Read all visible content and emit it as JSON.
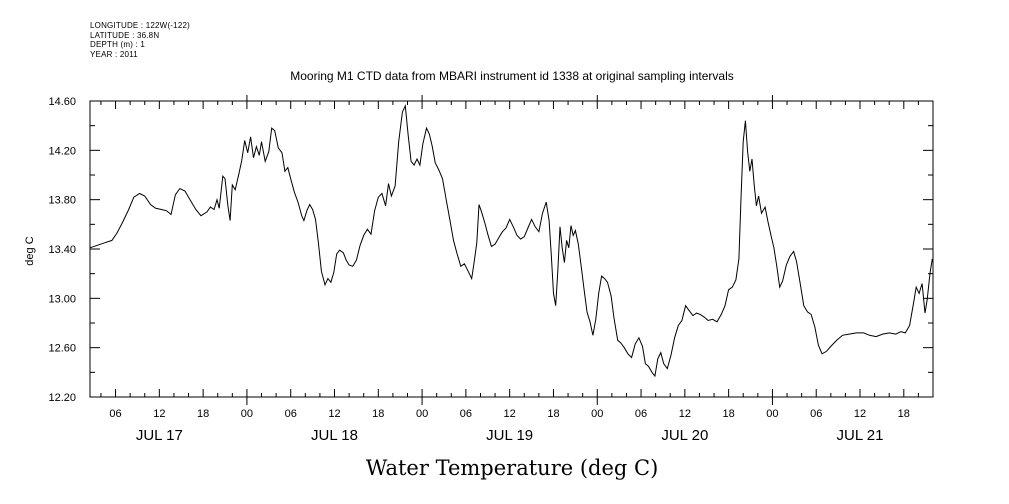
{
  "header_lines": [
    "LONGITUDE : 122W(-122)",
    "LATITUDE : 36.8N",
    "DEPTH (m) : 1",
    "YEAR : 2011"
  ],
  "chart_data": {
    "type": "line",
    "title": "Mooring M1 CTD data from MBARI instrument id 1338 at original sampling intervals",
    "ylabel": "deg C",
    "caption": "Water Temperature (deg C)",
    "ylim": [
      12.2,
      14.6
    ],
    "xlim_hours": [
      2.5,
      118.0
    ],
    "yticks": [
      12.2,
      12.6,
      13.0,
      13.4,
      13.8,
      14.2,
      14.6
    ],
    "ytick_labels": [
      "12.20",
      "12.60",
      "13.00",
      "13.40",
      "13.80",
      "14.20",
      "14.60"
    ],
    "xtick_labels": [
      {
        "hour": 6,
        "label": "06"
      },
      {
        "hour": 12,
        "label": "12"
      },
      {
        "hour": 18,
        "label": "18"
      },
      {
        "hour": 24,
        "label": "00"
      },
      {
        "hour": 30,
        "label": "06"
      },
      {
        "hour": 36,
        "label": "12"
      },
      {
        "hour": 42,
        "label": "18"
      },
      {
        "hour": 48,
        "label": "00"
      },
      {
        "hour": 54,
        "label": "06"
      },
      {
        "hour": 60,
        "label": "12"
      },
      {
        "hour": 66,
        "label": "18"
      },
      {
        "hour": 72,
        "label": "00"
      },
      {
        "hour": 78,
        "label": "06"
      },
      {
        "hour": 84,
        "label": "12"
      },
      {
        "hour": 90,
        "label": "18"
      },
      {
        "hour": 96,
        "label": "00"
      },
      {
        "hour": 102,
        "label": "06"
      },
      {
        "hour": 108,
        "label": "12"
      },
      {
        "hour": 114,
        "label": "18"
      }
    ],
    "day_labels": [
      {
        "hour": 12,
        "label": "JUL 17"
      },
      {
        "hour": 36,
        "label": "JUL 18"
      },
      {
        "hour": 60,
        "label": "JUL 19"
      },
      {
        "hour": 84,
        "label": "JUL 20"
      },
      {
        "hour": 108,
        "label": "JUL 21"
      }
    ],
    "series": [
      {
        "x_unit": "hours since JUL 17 00:00",
        "points": [
          [
            2.5,
            13.41
          ],
          [
            3.5,
            13.43
          ],
          [
            4.5,
            13.45
          ],
          [
            5.5,
            13.47
          ],
          [
            6.2,
            13.53
          ],
          [
            7.0,
            13.62
          ],
          [
            7.8,
            13.72
          ],
          [
            8.5,
            13.82
          ],
          [
            9.3,
            13.85
          ],
          [
            10.0,
            13.83
          ],
          [
            10.8,
            13.76
          ],
          [
            11.5,
            13.73
          ],
          [
            12.3,
            13.72
          ],
          [
            13.0,
            13.71
          ],
          [
            13.6,
            13.68
          ],
          [
            14.2,
            13.84
          ],
          [
            14.8,
            13.89
          ],
          [
            15.5,
            13.87
          ],
          [
            16.3,
            13.79
          ],
          [
            17.0,
            13.72
          ],
          [
            17.7,
            13.67
          ],
          [
            18.5,
            13.7
          ],
          [
            19.0,
            13.74
          ],
          [
            19.5,
            13.72
          ],
          [
            19.9,
            13.8
          ],
          [
            20.2,
            13.73
          ],
          [
            20.7,
            13.99
          ],
          [
            21.0,
            13.97
          ],
          [
            21.4,
            13.75
          ],
          [
            21.7,
            13.63
          ],
          [
            22.0,
            13.92
          ],
          [
            22.4,
            13.88
          ],
          [
            22.9,
            14.01
          ],
          [
            23.3,
            14.12
          ],
          [
            23.7,
            14.28
          ],
          [
            24.1,
            14.18
          ],
          [
            24.5,
            14.31
          ],
          [
            24.9,
            14.14
          ],
          [
            25.3,
            14.23
          ],
          [
            25.7,
            14.16
          ],
          [
            26.0,
            14.27
          ],
          [
            26.5,
            14.11
          ],
          [
            27.0,
            14.19
          ],
          [
            27.4,
            14.38
          ],
          [
            27.8,
            14.36
          ],
          [
            28.3,
            14.22
          ],
          [
            28.8,
            14.18
          ],
          [
            29.2,
            14.03
          ],
          [
            29.6,
            14.06
          ],
          [
            30.0,
            13.97
          ],
          [
            30.5,
            13.86
          ],
          [
            31.0,
            13.78
          ],
          [
            31.5,
            13.67
          ],
          [
            31.8,
            13.63
          ],
          [
            32.2,
            13.71
          ],
          [
            32.6,
            13.76
          ],
          [
            33.0,
            13.72
          ],
          [
            33.4,
            13.64
          ],
          [
            33.8,
            13.45
          ],
          [
            34.2,
            13.22
          ],
          [
            34.7,
            13.11
          ],
          [
            35.1,
            13.16
          ],
          [
            35.5,
            13.13
          ],
          [
            35.9,
            13.21
          ],
          [
            36.3,
            13.36
          ],
          [
            36.7,
            13.39
          ],
          [
            37.2,
            13.37
          ],
          [
            37.6,
            13.31
          ],
          [
            38.0,
            13.27
          ],
          [
            38.5,
            13.26
          ],
          [
            39.0,
            13.31
          ],
          [
            39.5,
            13.43
          ],
          [
            40.0,
            13.51
          ],
          [
            40.5,
            13.56
          ],
          [
            41.0,
            13.52
          ],
          [
            41.5,
            13.71
          ],
          [
            42.0,
            13.82
          ],
          [
            42.5,
            13.85
          ],
          [
            43.0,
            13.75
          ],
          [
            43.4,
            13.93
          ],
          [
            43.8,
            13.83
          ],
          [
            44.3,
            13.91
          ],
          [
            44.8,
            14.27
          ],
          [
            45.3,
            14.51
          ],
          [
            45.7,
            14.56
          ],
          [
            46.1,
            14.32
          ],
          [
            46.5,
            14.11
          ],
          [
            46.9,
            14.08
          ],
          [
            47.3,
            14.13
          ],
          [
            47.7,
            14.08
          ],
          [
            48.1,
            14.25
          ],
          [
            48.6,
            14.38
          ],
          [
            49.0,
            14.33
          ],
          [
            49.4,
            14.23
          ],
          [
            49.8,
            14.1
          ],
          [
            50.3,
            14.04
          ],
          [
            50.8,
            13.97
          ],
          [
            51.3,
            13.8
          ],
          [
            51.8,
            13.64
          ],
          [
            52.3,
            13.47
          ],
          [
            52.8,
            13.36
          ],
          [
            53.3,
            13.26
          ],
          [
            53.8,
            13.28
          ],
          [
            54.3,
            13.22
          ],
          [
            54.8,
            13.16
          ],
          [
            55.2,
            13.32
          ],
          [
            55.5,
            13.45
          ],
          [
            55.8,
            13.76
          ],
          [
            56.1,
            13.71
          ],
          [
            56.6,
            13.61
          ],
          [
            57.0,
            13.52
          ],
          [
            57.5,
            13.42
          ],
          [
            58.0,
            13.44
          ],
          [
            58.5,
            13.49
          ],
          [
            59.0,
            13.54
          ],
          [
            59.5,
            13.57
          ],
          [
            60.0,
            13.64
          ],
          [
            60.5,
            13.58
          ],
          [
            61.0,
            13.51
          ],
          [
            61.5,
            13.48
          ],
          [
            62.0,
            13.5
          ],
          [
            62.5,
            13.57
          ],
          [
            63.0,
            13.64
          ],
          [
            63.5,
            13.58
          ],
          [
            64.0,
            13.54
          ],
          [
            64.5,
            13.69
          ],
          [
            65.0,
            13.78
          ],
          [
            65.4,
            13.63
          ],
          [
            65.7,
            13.35
          ],
          [
            66.0,
            13.04
          ],
          [
            66.3,
            12.94
          ],
          [
            66.6,
            13.22
          ],
          [
            66.9,
            13.58
          ],
          [
            67.2,
            13.41
          ],
          [
            67.5,
            13.29
          ],
          [
            67.8,
            13.47
          ],
          [
            68.1,
            13.41
          ],
          [
            68.4,
            13.59
          ],
          [
            68.7,
            13.51
          ],
          [
            69.0,
            13.55
          ],
          [
            69.4,
            13.44
          ],
          [
            69.8,
            13.26
          ],
          [
            70.2,
            13.07
          ],
          [
            70.6,
            12.89
          ],
          [
            71.0,
            12.81
          ],
          [
            71.4,
            12.7
          ],
          [
            71.8,
            12.83
          ],
          [
            72.2,
            13.04
          ],
          [
            72.6,
            13.18
          ],
          [
            73.0,
            13.16
          ],
          [
            73.4,
            13.13
          ],
          [
            73.9,
            13.02
          ],
          [
            74.3,
            12.84
          ],
          [
            74.8,
            12.66
          ],
          [
            75.2,
            12.64
          ],
          [
            75.7,
            12.6
          ],
          [
            76.2,
            12.55
          ],
          [
            76.7,
            12.52
          ],
          [
            77.2,
            12.63
          ],
          [
            77.7,
            12.68
          ],
          [
            78.2,
            12.61
          ],
          [
            78.6,
            12.47
          ],
          [
            79.0,
            12.45
          ],
          [
            79.5,
            12.4
          ],
          [
            79.9,
            12.37
          ],
          [
            80.3,
            12.51
          ],
          [
            80.7,
            12.56
          ],
          [
            81.1,
            12.47
          ],
          [
            81.6,
            12.43
          ],
          [
            82.1,
            12.54
          ],
          [
            82.6,
            12.68
          ],
          [
            83.1,
            12.78
          ],
          [
            83.6,
            12.82
          ],
          [
            84.1,
            12.94
          ],
          [
            84.6,
            12.9
          ],
          [
            85.1,
            12.86
          ],
          [
            85.6,
            12.88
          ],
          [
            86.1,
            12.87
          ],
          [
            86.6,
            12.85
          ],
          [
            87.2,
            12.82
          ],
          [
            87.8,
            12.83
          ],
          [
            88.4,
            12.81
          ],
          [
            89.0,
            12.87
          ],
          [
            89.5,
            12.94
          ],
          [
            90.0,
            13.07
          ],
          [
            90.5,
            13.09
          ],
          [
            91.0,
            13.15
          ],
          [
            91.4,
            13.32
          ],
          [
            91.7,
            13.81
          ],
          [
            92.0,
            14.27
          ],
          [
            92.3,
            14.44
          ],
          [
            92.6,
            14.19
          ],
          [
            92.9,
            14.03
          ],
          [
            93.2,
            14.13
          ],
          [
            93.5,
            13.92
          ],
          [
            93.8,
            13.75
          ],
          [
            94.1,
            13.83
          ],
          [
            94.5,
            13.69
          ],
          [
            95.0,
            13.74
          ],
          [
            95.4,
            13.62
          ],
          [
            95.8,
            13.51
          ],
          [
            96.2,
            13.41
          ],
          [
            96.6,
            13.26
          ],
          [
            97.0,
            13.09
          ],
          [
            97.4,
            13.14
          ],
          [
            97.9,
            13.27
          ],
          [
            98.4,
            13.34
          ],
          [
            98.9,
            13.38
          ],
          [
            99.3,
            13.3
          ],
          [
            99.8,
            13.12
          ],
          [
            100.3,
            12.94
          ],
          [
            100.8,
            12.89
          ],
          [
            101.3,
            12.87
          ],
          [
            101.8,
            12.77
          ],
          [
            102.3,
            12.62
          ],
          [
            102.8,
            12.55
          ],
          [
            103.4,
            12.57
          ],
          [
            104.0,
            12.61
          ],
          [
            104.8,
            12.66
          ],
          [
            105.6,
            12.7
          ],
          [
            106.5,
            12.71
          ],
          [
            107.5,
            12.72
          ],
          [
            108.5,
            12.72
          ],
          [
            109.3,
            12.7
          ],
          [
            110.2,
            12.69
          ],
          [
            111.1,
            12.71
          ],
          [
            112.0,
            12.72
          ],
          [
            112.9,
            12.71
          ],
          [
            113.6,
            12.73
          ],
          [
            114.2,
            12.72
          ],
          [
            114.8,
            12.78
          ],
          [
            115.3,
            12.95
          ],
          [
            115.7,
            13.09
          ],
          [
            116.1,
            13.04
          ],
          [
            116.5,
            13.12
          ],
          [
            116.9,
            12.88
          ],
          [
            117.2,
            12.99
          ],
          [
            117.6,
            13.21
          ],
          [
            117.9,
            13.32
          ]
        ]
      }
    ]
  }
}
